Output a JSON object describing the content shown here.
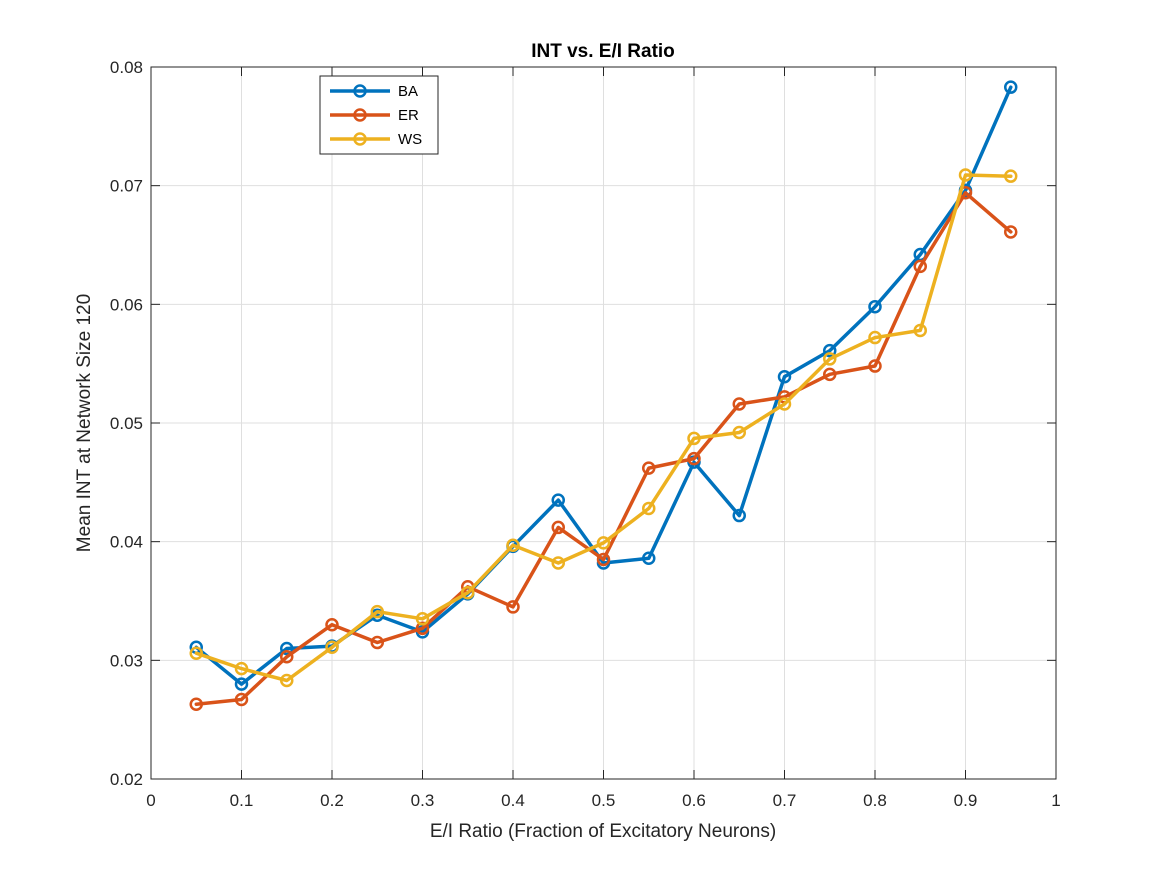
{
  "chart_data": {
    "type": "line",
    "title": "INT vs. E/I Ratio",
    "xlabel": "E/I Ratio (Fraction of Excitatory Neurons)",
    "ylabel": "Mean INT at Network Size 120",
    "xlim": [
      0,
      1
    ],
    "ylim": [
      0.02,
      0.08
    ],
    "xticks": [
      0,
      0.1,
      0.2,
      0.3,
      0.4,
      0.5,
      0.6,
      0.7,
      0.8,
      0.9,
      1
    ],
    "xtick_labels": [
      "0",
      "0.1",
      "0.2",
      "0.3",
      "0.4",
      "0.5",
      "0.6",
      "0.7",
      "0.8",
      "0.9",
      "1"
    ],
    "yticks": [
      0.02,
      0.03,
      0.04,
      0.05,
      0.06,
      0.07,
      0.08
    ],
    "ytick_labels": [
      "0.02",
      "0.03",
      "0.04",
      "0.05",
      "0.06",
      "0.07",
      "0.08"
    ],
    "grid": true,
    "legend_position": "top-left",
    "x": [
      0.05,
      0.1,
      0.15,
      0.2,
      0.25,
      0.3,
      0.35,
      0.4,
      0.45,
      0.5,
      0.55,
      0.6,
      0.65,
      0.7,
      0.75,
      0.8,
      0.85,
      0.9,
      0.95
    ],
    "series": [
      {
        "name": "BA",
        "color": "#0072BD",
        "values": [
          0.0311,
          0.028,
          0.031,
          0.0312,
          0.0338,
          0.0324,
          0.0356,
          0.0396,
          0.0435,
          0.0382,
          0.0386,
          0.0467,
          0.0422,
          0.0539,
          0.0561,
          0.0598,
          0.0642,
          0.0696,
          0.0783
        ]
      },
      {
        "name": "ER",
        "color": "#D95319",
        "values": [
          0.0263,
          0.0267,
          0.0303,
          0.033,
          0.0315,
          0.0327,
          0.0362,
          0.0345,
          0.0412,
          0.0385,
          0.0462,
          0.047,
          0.0516,
          0.0522,
          0.0541,
          0.0548,
          0.0632,
          0.0694,
          0.0661
        ]
      },
      {
        "name": "WS",
        "color": "#EDB120",
        "values": [
          0.0306,
          0.0293,
          0.0283,
          0.0311,
          0.0341,
          0.0335,
          0.0357,
          0.0397,
          0.0382,
          0.0399,
          0.0428,
          0.0487,
          0.0492,
          0.0516,
          0.0554,
          0.0572,
          0.0578,
          0.0709,
          0.0708
        ]
      }
    ]
  }
}
